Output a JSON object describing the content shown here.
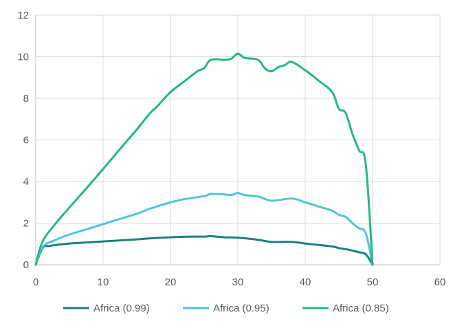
{
  "chart_data": {
    "type": "line",
    "title": "",
    "xlabel": "",
    "ylabel": "",
    "xlim": [
      0,
      60
    ],
    "ylim": [
      0,
      12
    ],
    "xticks": [
      0,
      10,
      20,
      30,
      40,
      50,
      60
    ],
    "yticks": [
      0,
      2,
      4,
      6,
      8,
      10,
      12
    ],
    "grid": true,
    "legend_position": "bottom",
    "series": [
      {
        "name": "Africa (0.99)",
        "color": "#1a7f7b",
        "x": [
          0,
          1,
          2,
          3,
          5,
          8,
          10,
          13,
          15,
          17,
          20,
          23,
          25,
          26,
          28,
          30,
          33,
          35,
          38,
          40,
          42,
          44,
          45,
          46,
          47,
          48,
          49,
          50
        ],
        "y": [
          0,
          0.8,
          0.9,
          0.95,
          1.02,
          1.08,
          1.12,
          1.18,
          1.22,
          1.27,
          1.32,
          1.35,
          1.35,
          1.37,
          1.32,
          1.3,
          1.2,
          1.1,
          1.1,
          1.02,
          0.95,
          0.88,
          0.8,
          0.75,
          0.68,
          0.6,
          0.5,
          0
        ]
      },
      {
        "name": "Africa (0.95)",
        "color": "#4fc3e0",
        "x": [
          0,
          1,
          3,
          5,
          8,
          10,
          13,
          15,
          17,
          20,
          22,
          25,
          26,
          28,
          29,
          30,
          31,
          33,
          35,
          38,
          40,
          42,
          44,
          45,
          46,
          47,
          48,
          49,
          50
        ],
        "y": [
          0,
          0.85,
          1.2,
          1.45,
          1.75,
          1.95,
          2.25,
          2.45,
          2.7,
          3.0,
          3.15,
          3.3,
          3.4,
          3.38,
          3.35,
          3.45,
          3.35,
          3.28,
          3.08,
          3.18,
          3.0,
          2.8,
          2.6,
          2.4,
          2.3,
          2.0,
          1.75,
          1.5,
          0
        ]
      },
      {
        "name": "Africa (0.85)",
        "color": "#22b883",
        "x": [
          0,
          1,
          3,
          5,
          8,
          10,
          13,
          15,
          17,
          18,
          20,
          22,
          24,
          25,
          26,
          28,
          29,
          30,
          31,
          33,
          34,
          35,
          36,
          37,
          38,
          40,
          42,
          44,
          45,
          46,
          47,
          48,
          49,
          50
        ],
        "y": [
          0,
          1.1,
          2.0,
          2.75,
          3.85,
          4.6,
          5.75,
          6.5,
          7.3,
          7.6,
          8.3,
          8.8,
          9.3,
          9.45,
          9.85,
          9.85,
          9.9,
          10.15,
          9.95,
          9.85,
          9.45,
          9.3,
          9.5,
          9.6,
          9.75,
          9.35,
          8.85,
          8.3,
          7.5,
          7.3,
          6.3,
          5.5,
          4.8,
          0
        ]
      }
    ]
  }
}
